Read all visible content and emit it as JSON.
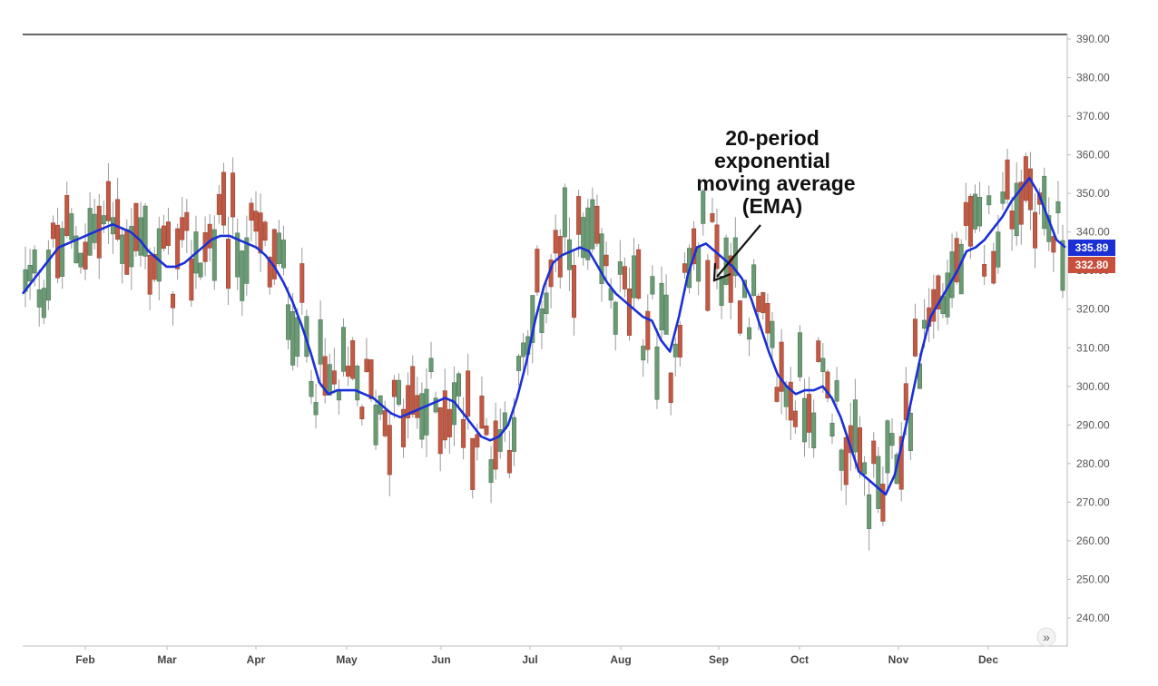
{
  "chart_data": {
    "type": "candlestick",
    "y_axis": {
      "min": 240,
      "max": 390,
      "ticks": [
        "240.00",
        "250.00",
        "260.00",
        "270.00",
        "280.00",
        "290.00",
        "300.00",
        "310.00",
        "320.00",
        "330.00",
        "340.00",
        "350.00",
        "360.00",
        "370.00",
        "380.00",
        "390.00"
      ],
      "position": "right"
    },
    "x_axis": {
      "months": [
        "Feb",
        "Mar",
        "Apr",
        "May",
        "Jun",
        "Jul",
        "Aug",
        "Sep",
        "Oct",
        "Nov",
        "Dec"
      ]
    },
    "ema_20": {
      "name": "20-period exponential moving average (EMA)",
      "color": "#1a2fd6",
      "values": [
        324,
        327,
        330,
        333,
        336,
        337,
        338,
        339,
        340,
        341,
        342,
        341,
        340,
        338,
        335,
        333,
        331,
        331,
        332,
        334,
        336,
        338,
        339,
        339,
        338,
        337,
        336,
        334,
        331,
        327,
        322,
        316,
        309,
        301,
        298,
        299,
        299,
        299,
        298,
        297,
        295,
        293,
        292,
        293,
        294,
        295,
        296,
        297,
        296,
        293,
        290,
        287,
        286,
        287,
        290,
        297,
        306,
        317,
        326,
        332,
        334,
        335,
        336,
        335,
        331,
        327,
        324,
        322,
        320,
        318,
        317,
        312,
        309,
        318,
        329,
        336,
        337,
        335,
        333,
        331,
        328,
        323,
        316,
        309,
        303,
        300,
        298,
        299,
        299,
        300,
        297,
        292,
        285,
        278,
        276,
        274,
        272,
        277,
        287,
        298,
        309,
        318,
        322,
        326,
        330,
        335,
        336,
        338,
        341,
        344,
        348,
        351,
        354,
        350,
        344,
        338,
        336
      ]
    },
    "last_price": {
      "ema_label": "335.89",
      "ema_color": "#1a2fd6",
      "price_label": "332.80",
      "price_color": "#c94f3d"
    },
    "annotation": {
      "lines": [
        "20-period",
        "exponential",
        "moving average",
        "(EMA)"
      ]
    },
    "colors": {
      "up": "#6b9a74",
      "down": "#c05a44",
      "wick": "#9a9a9a",
      "ema": "#1a2fd6"
    }
  },
  "ui": {
    "scroll_icon": "»"
  }
}
